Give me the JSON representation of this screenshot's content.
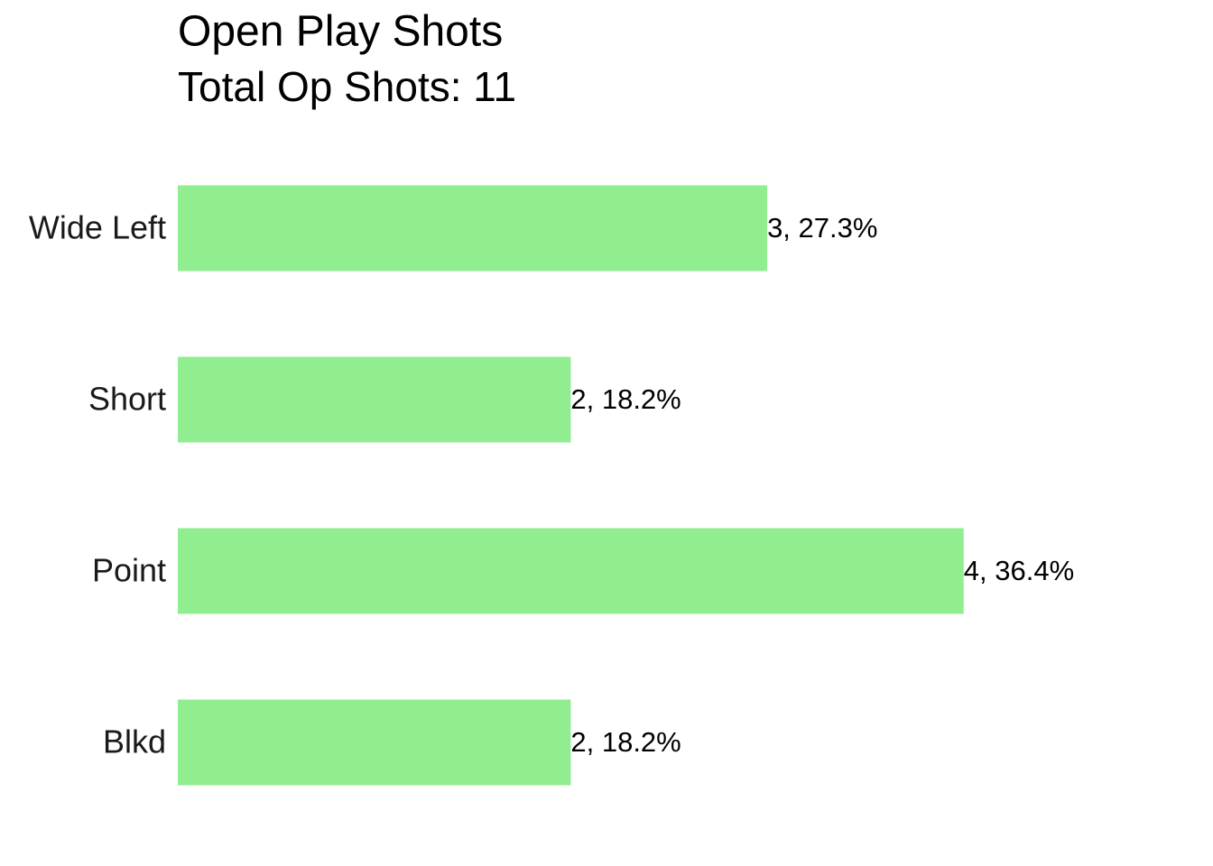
{
  "chart_data": {
    "type": "bar",
    "orientation": "horizontal",
    "title": "Open Play Shots",
    "subtitle": "Total Op Shots: 11",
    "categories": [
      "Wide Left",
      "Short",
      "Point",
      "Blkd"
    ],
    "values": [
      3,
      2,
      4,
      2
    ],
    "value_labels": [
      "3, 27.3%",
      "2, 18.2%",
      "4, 36.4%",
      "2, 18.2%"
    ],
    "color": "#90ee90",
    "xlim": [
      0,
      5.2
    ]
  }
}
